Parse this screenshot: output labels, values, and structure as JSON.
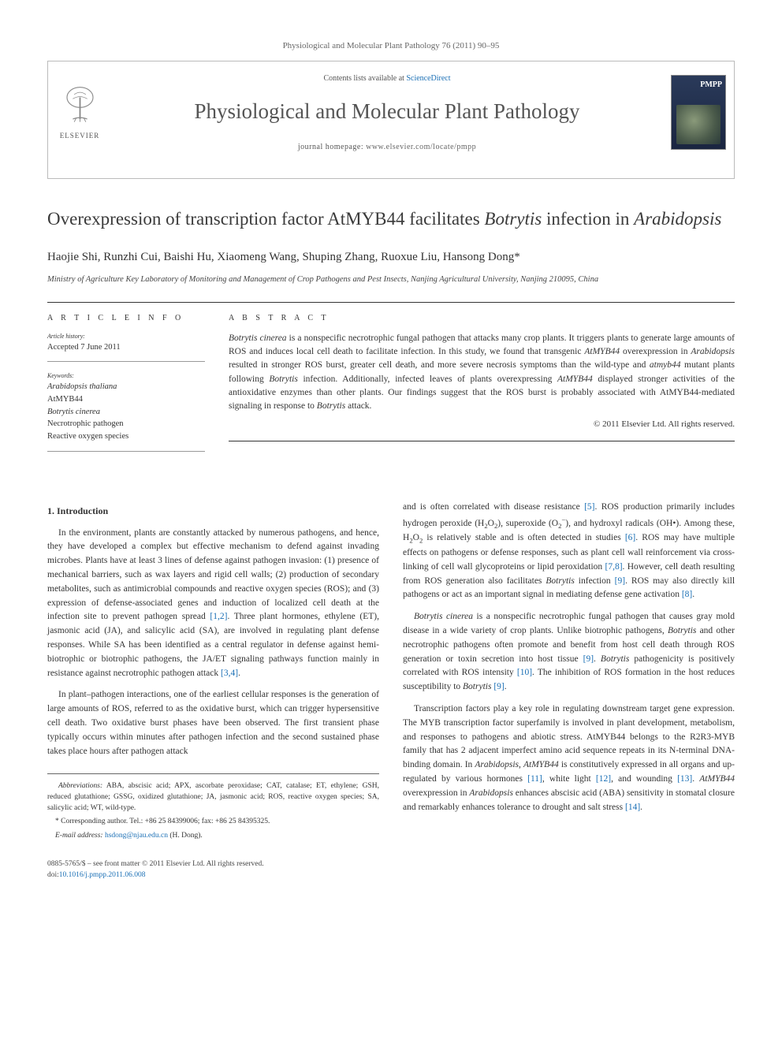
{
  "running_head": "Physiological and Molecular Plant Pathology 76 (2011) 90–95",
  "masthead": {
    "contents_prefix": "Contents lists available at ",
    "contents_link": "ScienceDirect",
    "journal_name": "Physiological and Molecular Plant Pathology",
    "homepage_prefix": "journal homepage: ",
    "homepage_url": "www.elsevier.com/locate/pmpp",
    "publisher": "ELSEVIER",
    "cover_abbrev": "PMPP"
  },
  "title_parts": {
    "p1": "Overexpression of transcription factor AtMYB44 facilitates ",
    "ital1": "Botrytis",
    "p2": " infection in ",
    "ital2": "Arabidopsis"
  },
  "authors": "Haojie Shi, Runzhi Cui, Baishi Hu, Xiaomeng Wang, Shuping Zhang, Ruoxue Liu, Hansong Dong*",
  "affiliation": "Ministry of Agriculture Key Laboratory of Monitoring and Management of Crop Pathogens and Pest Insects, Nanjing Agricultural University, Nanjing 210095, China",
  "article_info": {
    "head": "A R T I C L E   I N F O",
    "history_label": "Article history:",
    "history_value": "Accepted 7 June 2011",
    "keywords_label": "Keywords:",
    "keywords": [
      "Arabidopsis thaliana",
      "AtMYB44",
      "Botrytis cinerea",
      "Necrotrophic pathogen",
      "Reactive oxygen species"
    ]
  },
  "abstract": {
    "head": "A B S T R A C T",
    "text_parts": [
      {
        "ital": "Botrytis cinerea"
      },
      {
        "t": " is a nonspecific necrotrophic fungal pathogen that attacks many crop plants. It triggers plants to generate large amounts of ROS and induces local cell death to facilitate infection. In this study, we found that transgenic "
      },
      {
        "ital": "AtMYB44"
      },
      {
        "t": " overexpression in "
      },
      {
        "ital": "Arabidopsis"
      },
      {
        "t": " resulted in stronger ROS burst, greater cell death, and more severe necrosis symptoms than the wild-type and "
      },
      {
        "ital": "atmyb44"
      },
      {
        "t": " mutant plants following "
      },
      {
        "ital": "Botrytis"
      },
      {
        "t": " infection. Additionally, infected leaves of plants overexpressing "
      },
      {
        "ital": "AtMYB44"
      },
      {
        "t": " displayed stronger activities of the antioxidative enzymes than other plants. Our findings suggest that the ROS burst is probably associated with AtMYB44-mediated signaling in response to "
      },
      {
        "ital": "Botrytis"
      },
      {
        "t": " attack."
      }
    ],
    "copyright": "© 2011 Elsevier Ltd. All rights reserved."
  },
  "section_heading": "1. Introduction",
  "body": {
    "p1": "In the environment, plants are constantly attacked by numerous pathogens, and hence, they have developed a complex but effective mechanism to defend against invading microbes. Plants have at least 3 lines of defense against pathogen invasion: (1) presence of mechanical barriers, such as wax layers and rigid cell walls; (2) production of secondary metabolites, such as antimicrobial compounds and reactive oxygen species (ROS); and (3) expression of defense-associated genes and induction of localized cell death at the infection site to prevent pathogen spread ",
    "c1": "[1,2]",
    "p1b": ". Three plant hormones, ethylene (ET), jasmonic acid (JA), and salicylic acid (SA), are involved in regulating plant defense responses. While SA has been identified as a central regulator in defense against hemi-biotrophic or biotrophic pathogens, the JA/ET signaling pathways function mainly in resistance against necrotrophic pathogen attack ",
    "c2": "[3,4]",
    "p1c": ".",
    "p2": "In plant–pathogen interactions, one of the earliest cellular responses is the generation of large amounts of ROS, referred to as the oxidative burst, which can trigger hypersensitive cell death. Two oxidative burst phases have been observed. The first transient phase typically occurs within minutes after pathogen infection and the second sustained phase takes place hours after pathogen attack",
    "p3a": "and is often correlated with disease resistance ",
    "c5": "[5]",
    "p3b": ". ROS production primarily includes hydrogen peroxide (H",
    "p3c": "O",
    "p3d": "), superoxide (O",
    "p3e": "), and hydroxyl radicals (OH•). Among these, H",
    "p3f": "O",
    "p3g": " is relatively stable and is often detected in studies ",
    "c6": "[6]",
    "p3h": ". ROS may have multiple effects on pathogens or defense responses, such as plant cell wall reinforcement via cross-linking of cell wall glycoproteins or lipid peroxidation ",
    "c78": "[7,8]",
    "p3i": ". However, cell death resulting from ROS generation also facilitates ",
    "p3j": " infection ",
    "c9": "[9]",
    "p3k": ". ROS may also directly kill pathogens or act as an important signal in mediating defense gene activation ",
    "c8": "[8]",
    "p3l": ".",
    "p4a": " is a nonspecific necrotrophic fungal pathogen that causes gray mold disease in a wide variety of crop plants. Unlike biotrophic pathogens, ",
    "p4b": " and other necrotrophic pathogens often promote and benefit from host cell death through ROS generation or toxin secretion into host tissue ",
    "p4c": ". ",
    "p4d": " pathogenicity is positively correlated with ROS intensity ",
    "c10": "[10]",
    "p4e": ". The inhibition of ROS formation in the host reduces susceptibility to ",
    "p4f": " ",
    "p5a": "Transcription factors play a key role in regulating downstream target gene expression. The MYB transcription factor superfamily is involved in plant development, metabolism, and responses to pathogens and abiotic stress. AtMYB44 belongs to the R2R3-MYB family that has 2 adjacent imperfect amino acid sequence repeats in its N-terminal DNA-binding domain. In ",
    "p5b": ", ",
    "p5c": " is constitutively expressed in all organs and up-regulated by various hormones ",
    "c11": "[11]",
    "p5d": ", white light ",
    "c12": "[12]",
    "p5e": ", and wounding ",
    "c13": "[13]",
    "p5f": ". ",
    "p5g": " overexpression in ",
    "p5h": " enhances abscisic acid (ABA) sensitivity in stomatal closure and remarkably enhances tolerance to drought and salt stress ",
    "c14": "[14]",
    "p5i": "."
  },
  "botrytis": "Botrytis",
  "botrytis_cinerea": "Botrytis cinerea",
  "arabidopsis": "Arabidopsis",
  "atmyb44": "AtMYB44",
  "footnotes": {
    "abbrev_label": "Abbreviations:",
    "abbrev_text": " ABA, abscisic acid; APX, ascorbate peroxidase; CAT, catalase; ET, ethylene; GSH, reduced glutathione; GSSG, oxidized glutathione; JA, jasmonic acid; ROS, reactive oxygen species; SA, salicylic acid; WT, wild-type.",
    "corr_label": "* Corresponding author. ",
    "corr_text": "Tel.: +86 25 84399006; fax: +86 25 84395325.",
    "email_label": "E-mail address: ",
    "email": "hsdong@njau.edu.cn",
    "email_suffix": " (H. Dong)."
  },
  "footer": {
    "line1": "0885-5765/$ – see front matter © 2011 Elsevier Ltd. All rights reserved.",
    "doi_prefix": "doi:",
    "doi": "10.1016/j.pmpp.2011.06.008"
  },
  "colors": {
    "link": "#1a6fb5",
    "text": "#333333",
    "rule": "#333333",
    "muted": "#666666"
  }
}
